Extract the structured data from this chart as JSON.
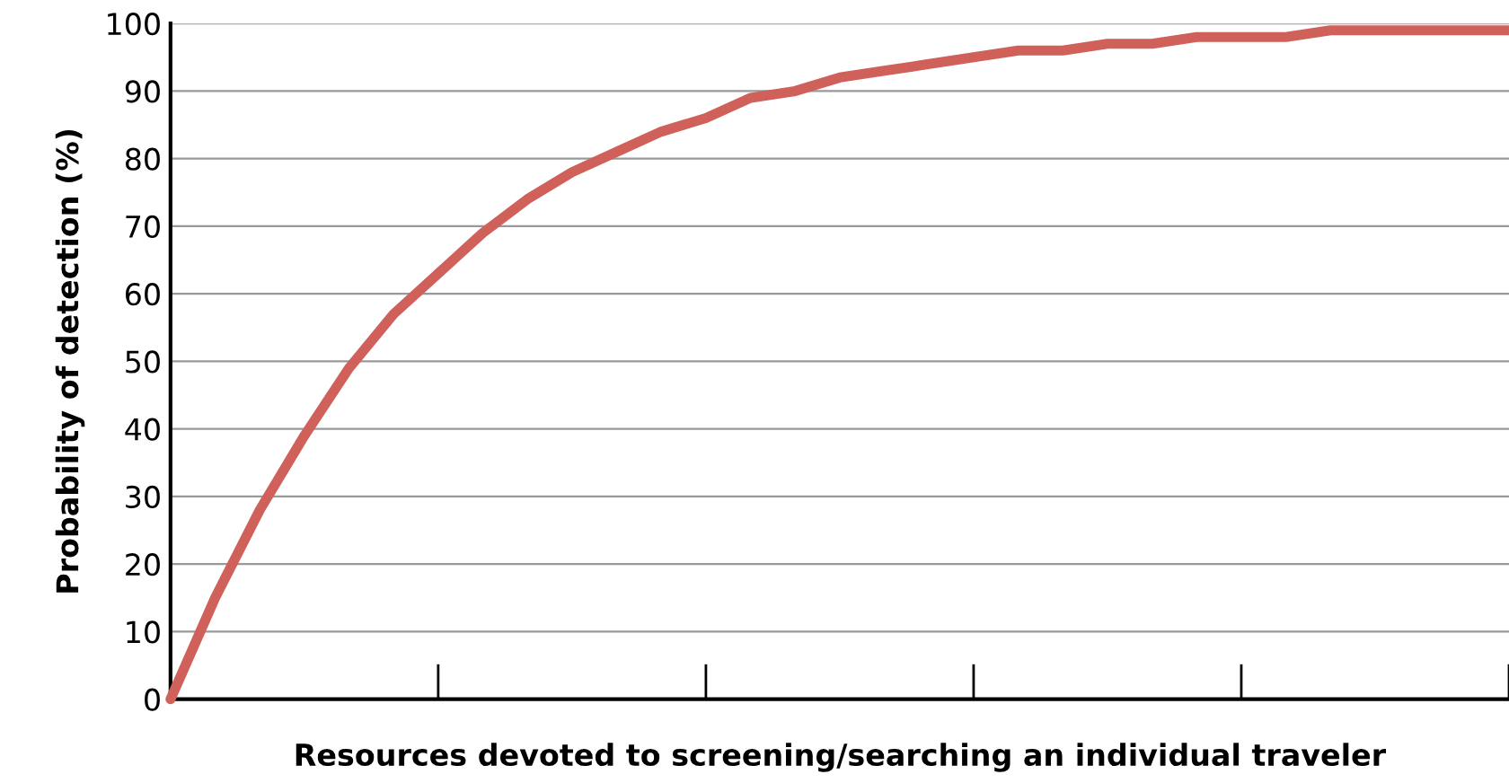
{
  "chart_data": {
    "type": "line",
    "xlabel": "Resources devoted to screening/searching an individual traveler",
    "ylabel": "Probability of detection (%)",
    "categories": [
      null,
      null,
      null,
      null,
      null,
      null,
      null,
      null,
      null,
      null,
      null,
      null,
      null,
      null,
      null,
      null,
      null,
      null,
      null,
      null,
      null,
      null,
      null,
      null,
      null,
      null,
      null,
      null,
      null,
      null,
      null
    ],
    "series": [
      {
        "color": "#d0605a",
        "values": [
          0,
          15,
          28,
          39,
          49,
          57,
          63,
          69,
          74,
          78,
          81,
          84,
          86,
          89,
          90,
          92,
          93,
          94,
          95,
          96,
          96,
          97,
          97,
          98,
          98,
          98,
          99,
          99,
          99,
          99,
          99
        ]
      }
    ],
    "ylim": [
      0,
      100
    ],
    "yticks": [
      0,
      10,
      20,
      30,
      40,
      50,
      60,
      70,
      80,
      90,
      100
    ],
    "grid": "y",
    "marker": "none",
    "line_style": "solid",
    "legend": false
  }
}
